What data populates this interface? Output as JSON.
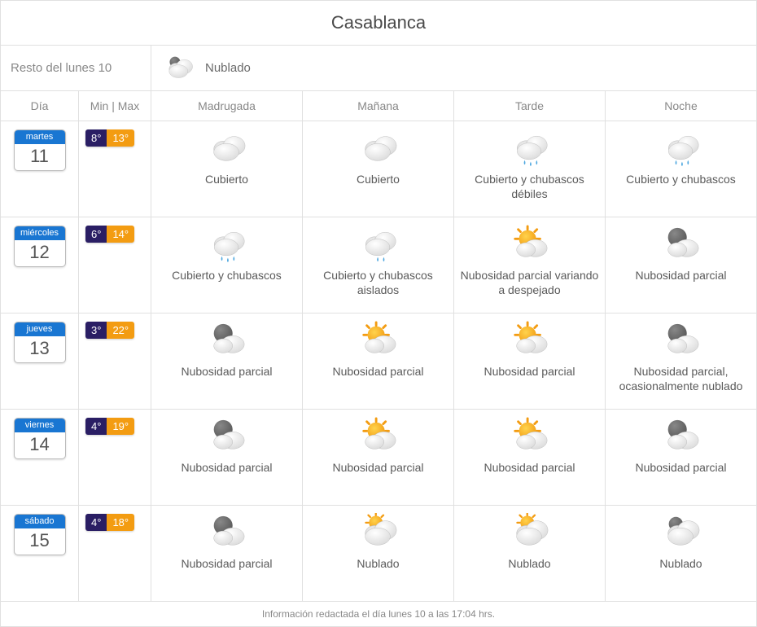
{
  "title": "Casablanca",
  "current": {
    "left_label": "Resto del lunes 10",
    "icon": "cloudy-night",
    "condition": "Nublado"
  },
  "headers": {
    "day": "Día",
    "minmax": "Min | Max",
    "periods": [
      "Madrugada",
      "Mañana",
      "Tarde",
      "Noche"
    ]
  },
  "colors": {
    "dow_bg": "#1976d2",
    "lo_bg": "#2a1e64",
    "hi_bg": "#f39c12",
    "border": "#e0e0e0",
    "text": "#5a5a5a"
  },
  "days": [
    {
      "dow": "martes",
      "dom": "11",
      "lo": "8°",
      "hi": "13°",
      "periods": [
        {
          "icon": "overcast",
          "label": "Cubierto"
        },
        {
          "icon": "overcast",
          "label": "Cubierto"
        },
        {
          "icon": "rain",
          "label": "Cubierto y chubascos débiles"
        },
        {
          "icon": "rain",
          "label": "Cubierto y chubascos"
        }
      ]
    },
    {
      "dow": "miércoles",
      "dom": "12",
      "lo": "6°",
      "hi": "14°",
      "periods": [
        {
          "icon": "rain",
          "label": "Cubierto y chubascos"
        },
        {
          "icon": "rain-light",
          "label": "Cubierto y chubascos aislados"
        },
        {
          "icon": "partly-sunny",
          "label": "Nubosidad parcial variando a despejado"
        },
        {
          "icon": "partly-cloudy-night",
          "label": "Nubosidad parcial"
        }
      ]
    },
    {
      "dow": "jueves",
      "dom": "13",
      "lo": "3°",
      "hi": "22°",
      "periods": [
        {
          "icon": "partly-cloudy-night",
          "label": "Nubosidad parcial"
        },
        {
          "icon": "partly-sunny",
          "label": "Nubosidad parcial"
        },
        {
          "icon": "partly-sunny",
          "label": "Nubosidad parcial"
        },
        {
          "icon": "partly-cloudy-night",
          "label": "Nubosidad parcial, ocasionalmente nublado"
        }
      ]
    },
    {
      "dow": "viernes",
      "dom": "14",
      "lo": "4°",
      "hi": "19°",
      "periods": [
        {
          "icon": "partly-cloudy-night",
          "label": "Nubosidad parcial"
        },
        {
          "icon": "partly-sunny",
          "label": "Nubosidad parcial"
        },
        {
          "icon": "partly-sunny",
          "label": "Nubosidad parcial"
        },
        {
          "icon": "partly-cloudy-night",
          "label": "Nubosidad parcial"
        }
      ]
    },
    {
      "dow": "sábado",
      "dom": "15",
      "lo": "4°",
      "hi": "18°",
      "periods": [
        {
          "icon": "partly-cloudy-night",
          "label": "Nubosidad parcial"
        },
        {
          "icon": "cloudy-sun",
          "label": "Nublado"
        },
        {
          "icon": "cloudy-sun",
          "label": "Nublado"
        },
        {
          "icon": "cloudy-night",
          "label": "Nublado"
        }
      ]
    }
  ],
  "footer": "Información redactada el día lunes 10 a las 17:04 hrs."
}
